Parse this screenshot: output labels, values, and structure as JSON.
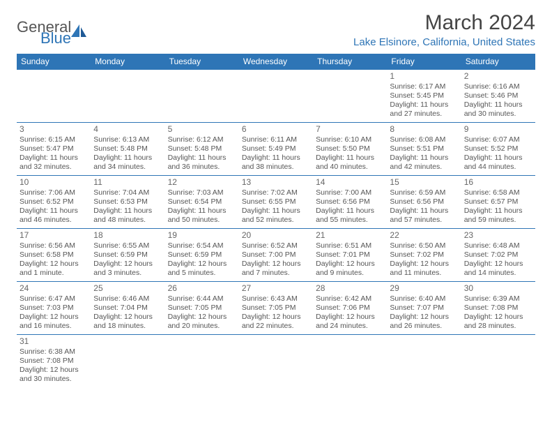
{
  "logo": {
    "general": "General",
    "blue": "Blue"
  },
  "title": "March 2024",
  "location": "Lake Elsinore, California, United States",
  "colors": {
    "header_bg": "#2e75b6",
    "header_text": "#ffffff",
    "border": "#2e75b6",
    "accent": "#2e75b6",
    "body_text": "#555555",
    "daynum": "#666666"
  },
  "day_headers": [
    "Sunday",
    "Monday",
    "Tuesday",
    "Wednesday",
    "Thursday",
    "Friday",
    "Saturday"
  ],
  "weeks": [
    [
      null,
      null,
      null,
      null,
      null,
      {
        "n": "1",
        "sr": "Sunrise: 6:17 AM",
        "ss": "Sunset: 5:45 PM",
        "dl1": "Daylight: 11 hours",
        "dl2": "and 27 minutes."
      },
      {
        "n": "2",
        "sr": "Sunrise: 6:16 AM",
        "ss": "Sunset: 5:46 PM",
        "dl1": "Daylight: 11 hours",
        "dl2": "and 30 minutes."
      }
    ],
    [
      {
        "n": "3",
        "sr": "Sunrise: 6:15 AM",
        "ss": "Sunset: 5:47 PM",
        "dl1": "Daylight: 11 hours",
        "dl2": "and 32 minutes."
      },
      {
        "n": "4",
        "sr": "Sunrise: 6:13 AM",
        "ss": "Sunset: 5:48 PM",
        "dl1": "Daylight: 11 hours",
        "dl2": "and 34 minutes."
      },
      {
        "n": "5",
        "sr": "Sunrise: 6:12 AM",
        "ss": "Sunset: 5:48 PM",
        "dl1": "Daylight: 11 hours",
        "dl2": "and 36 minutes."
      },
      {
        "n": "6",
        "sr": "Sunrise: 6:11 AM",
        "ss": "Sunset: 5:49 PM",
        "dl1": "Daylight: 11 hours",
        "dl2": "and 38 minutes."
      },
      {
        "n": "7",
        "sr": "Sunrise: 6:10 AM",
        "ss": "Sunset: 5:50 PM",
        "dl1": "Daylight: 11 hours",
        "dl2": "and 40 minutes."
      },
      {
        "n": "8",
        "sr": "Sunrise: 6:08 AM",
        "ss": "Sunset: 5:51 PM",
        "dl1": "Daylight: 11 hours",
        "dl2": "and 42 minutes."
      },
      {
        "n": "9",
        "sr": "Sunrise: 6:07 AM",
        "ss": "Sunset: 5:52 PM",
        "dl1": "Daylight: 11 hours",
        "dl2": "and 44 minutes."
      }
    ],
    [
      {
        "n": "10",
        "sr": "Sunrise: 7:06 AM",
        "ss": "Sunset: 6:52 PM",
        "dl1": "Daylight: 11 hours",
        "dl2": "and 46 minutes."
      },
      {
        "n": "11",
        "sr": "Sunrise: 7:04 AM",
        "ss": "Sunset: 6:53 PM",
        "dl1": "Daylight: 11 hours",
        "dl2": "and 48 minutes."
      },
      {
        "n": "12",
        "sr": "Sunrise: 7:03 AM",
        "ss": "Sunset: 6:54 PM",
        "dl1": "Daylight: 11 hours",
        "dl2": "and 50 minutes."
      },
      {
        "n": "13",
        "sr": "Sunrise: 7:02 AM",
        "ss": "Sunset: 6:55 PM",
        "dl1": "Daylight: 11 hours",
        "dl2": "and 52 minutes."
      },
      {
        "n": "14",
        "sr": "Sunrise: 7:00 AM",
        "ss": "Sunset: 6:56 PM",
        "dl1": "Daylight: 11 hours",
        "dl2": "and 55 minutes."
      },
      {
        "n": "15",
        "sr": "Sunrise: 6:59 AM",
        "ss": "Sunset: 6:56 PM",
        "dl1": "Daylight: 11 hours",
        "dl2": "and 57 minutes."
      },
      {
        "n": "16",
        "sr": "Sunrise: 6:58 AM",
        "ss": "Sunset: 6:57 PM",
        "dl1": "Daylight: 11 hours",
        "dl2": "and 59 minutes."
      }
    ],
    [
      {
        "n": "17",
        "sr": "Sunrise: 6:56 AM",
        "ss": "Sunset: 6:58 PM",
        "dl1": "Daylight: 12 hours",
        "dl2": "and 1 minute."
      },
      {
        "n": "18",
        "sr": "Sunrise: 6:55 AM",
        "ss": "Sunset: 6:59 PM",
        "dl1": "Daylight: 12 hours",
        "dl2": "and 3 minutes."
      },
      {
        "n": "19",
        "sr": "Sunrise: 6:54 AM",
        "ss": "Sunset: 6:59 PM",
        "dl1": "Daylight: 12 hours",
        "dl2": "and 5 minutes."
      },
      {
        "n": "20",
        "sr": "Sunrise: 6:52 AM",
        "ss": "Sunset: 7:00 PM",
        "dl1": "Daylight: 12 hours",
        "dl2": "and 7 minutes."
      },
      {
        "n": "21",
        "sr": "Sunrise: 6:51 AM",
        "ss": "Sunset: 7:01 PM",
        "dl1": "Daylight: 12 hours",
        "dl2": "and 9 minutes."
      },
      {
        "n": "22",
        "sr": "Sunrise: 6:50 AM",
        "ss": "Sunset: 7:02 PM",
        "dl1": "Daylight: 12 hours",
        "dl2": "and 11 minutes."
      },
      {
        "n": "23",
        "sr": "Sunrise: 6:48 AM",
        "ss": "Sunset: 7:02 PM",
        "dl1": "Daylight: 12 hours",
        "dl2": "and 14 minutes."
      }
    ],
    [
      {
        "n": "24",
        "sr": "Sunrise: 6:47 AM",
        "ss": "Sunset: 7:03 PM",
        "dl1": "Daylight: 12 hours",
        "dl2": "and 16 minutes."
      },
      {
        "n": "25",
        "sr": "Sunrise: 6:46 AM",
        "ss": "Sunset: 7:04 PM",
        "dl1": "Daylight: 12 hours",
        "dl2": "and 18 minutes."
      },
      {
        "n": "26",
        "sr": "Sunrise: 6:44 AM",
        "ss": "Sunset: 7:05 PM",
        "dl1": "Daylight: 12 hours",
        "dl2": "and 20 minutes."
      },
      {
        "n": "27",
        "sr": "Sunrise: 6:43 AM",
        "ss": "Sunset: 7:05 PM",
        "dl1": "Daylight: 12 hours",
        "dl2": "and 22 minutes."
      },
      {
        "n": "28",
        "sr": "Sunrise: 6:42 AM",
        "ss": "Sunset: 7:06 PM",
        "dl1": "Daylight: 12 hours",
        "dl2": "and 24 minutes."
      },
      {
        "n": "29",
        "sr": "Sunrise: 6:40 AM",
        "ss": "Sunset: 7:07 PM",
        "dl1": "Daylight: 12 hours",
        "dl2": "and 26 minutes."
      },
      {
        "n": "30",
        "sr": "Sunrise: 6:39 AM",
        "ss": "Sunset: 7:08 PM",
        "dl1": "Daylight: 12 hours",
        "dl2": "and 28 minutes."
      }
    ],
    [
      {
        "n": "31",
        "sr": "Sunrise: 6:38 AM",
        "ss": "Sunset: 7:08 PM",
        "dl1": "Daylight: 12 hours",
        "dl2": "and 30 minutes."
      },
      null,
      null,
      null,
      null,
      null,
      null
    ]
  ]
}
